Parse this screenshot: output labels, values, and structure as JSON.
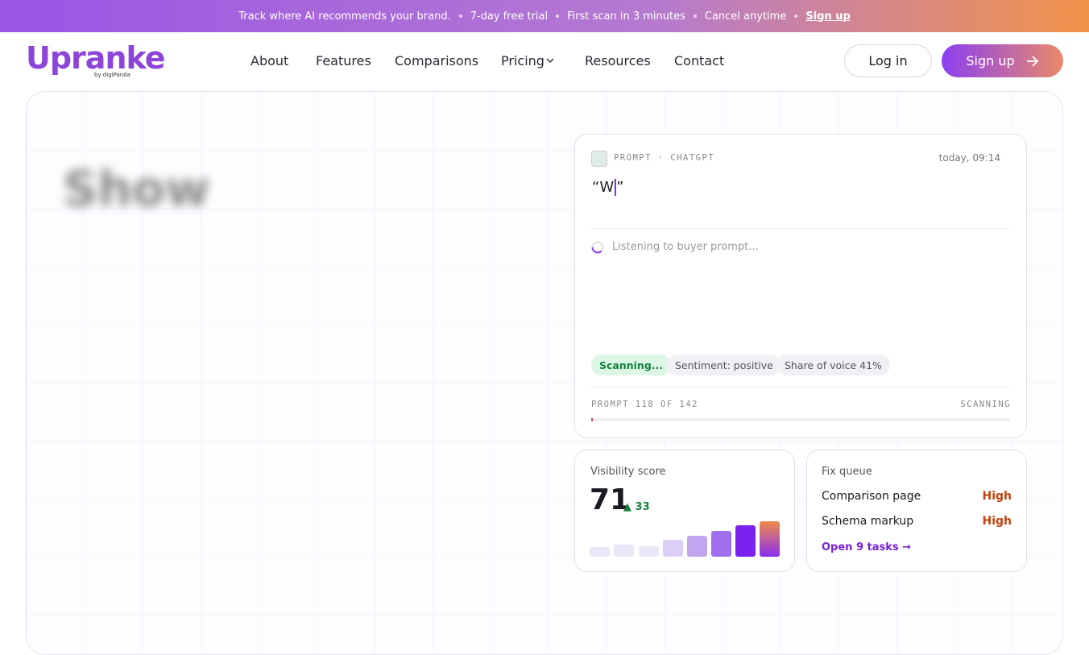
{
  "banner": {
    "items": [
      "Track where AI recommends your brand.",
      "7-day free trial",
      "First scan in 3 minutes",
      "Cancel anytime"
    ],
    "link": "Sign up"
  },
  "header": {
    "logo": "Upranke",
    "logo_sub": "by digiPanda",
    "nav": [
      "About",
      "Features",
      "Comparisons",
      "Pricing",
      "Resources",
      "Contact"
    ],
    "login": "Log in",
    "signup": "Sign up"
  },
  "hero": {
    "blurred_heading": "Show"
  },
  "prompt_card": {
    "label": "PROMPT · CHATGPT",
    "time": "today, 09:14",
    "prompt_text": "“W",
    "prompt_close": "”",
    "status": "Listening to buyer prompt...",
    "tags": [
      "Scanning...",
      "Sentiment: positive",
      "Share of voice 41%"
    ],
    "progress_label": "PROMPT 118 OF 142",
    "progress_state": "SCANNING"
  },
  "visibility_card": {
    "title": "Visibility score",
    "score": "71",
    "delta": "▲ 33"
  },
  "fix_card": {
    "title": "Fix queue",
    "items": [
      {
        "label": "Comparison page",
        "priority": "High"
      },
      {
        "label": "Schema markup",
        "priority": "High"
      }
    ],
    "link": "Open 9 tasks →"
  }
}
